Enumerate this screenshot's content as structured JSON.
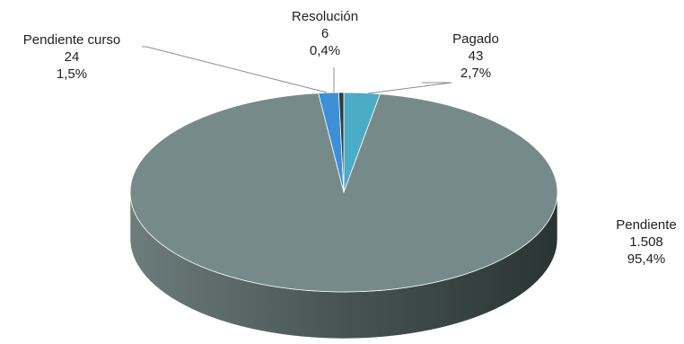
{
  "chart_data": {
    "type": "pie",
    "style": "3d",
    "title": "",
    "start_angle_deg": 0,
    "direction": "clockwise",
    "slices": [
      {
        "label": "Pagado",
        "value": 43,
        "percent": "2,7%",
        "value_label": "43",
        "color": "#4BACC6"
      },
      {
        "label": "Pendiente",
        "value": 1508,
        "percent": "95,4%",
        "value_label": "1.508",
        "color": "#778A8A"
      },
      {
        "label": "Pendiente curso",
        "value": 24,
        "percent": "1,5%",
        "value_label": "24",
        "color": "#3D8FD6"
      },
      {
        "label": "Resolución",
        "value": 6,
        "percent": "0,4%",
        "value_label": "6",
        "color": "#2F3B3E"
      }
    ],
    "legend": "none"
  }
}
